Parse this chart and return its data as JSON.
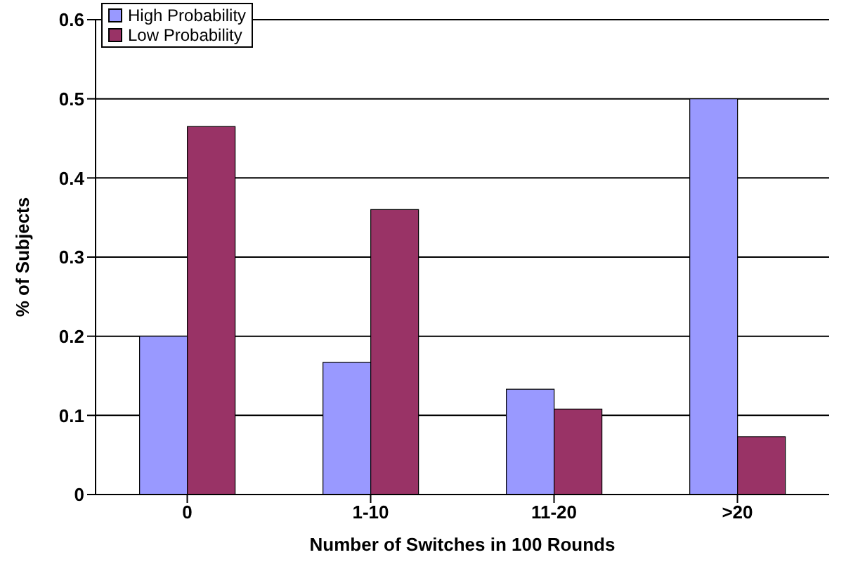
{
  "chart_data": {
    "type": "bar",
    "xlabel": "Number of Switches in 100 Rounds",
    "ylabel": "% of Subjects",
    "categories": [
      "0",
      "1-10",
      "11-20",
      ">20"
    ],
    "series": [
      {
        "name": "High Probability",
        "color": "#9999ff",
        "values": [
          0.2,
          0.167,
          0.133,
          0.5
        ]
      },
      {
        "name": "Low Probability",
        "color": "#993366",
        "values": [
          0.465,
          0.36,
          0.108,
          0.073
        ]
      }
    ],
    "ylim": [
      0,
      0.6
    ],
    "yticks": [
      0,
      0.1,
      0.2,
      0.3,
      0.4,
      0.5,
      0.6
    ],
    "grid": "y",
    "legend": "top left"
  }
}
